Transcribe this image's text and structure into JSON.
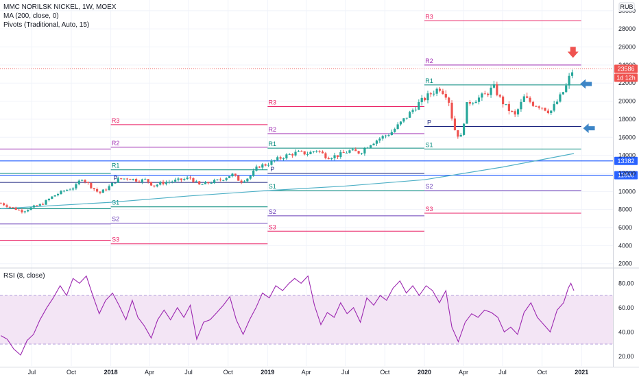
{
  "legend": {
    "title": "MMC NORILSK NICKEL, 1W, MOEX",
    "ma": "MA (200, close, 0)",
    "pivots": "Pivots (Traditional, Auto, 15)",
    "rsi": "RSI (8, close)"
  },
  "currency": "RUB",
  "colors": {
    "up": "#26a69a",
    "down": "#ef5350",
    "ma": "#4fb0c6",
    "rsi": "#9c27b0",
    "rsi_band": "#f3e5f5",
    "pivot_r": "#e91e63",
    "pivot_r2": "#9c27b0",
    "pivot_s2": "#673ab7",
    "pivot_r1": "#00897b",
    "pivot_p": "#1a237e",
    "hline": "#2962ff",
    "price_tag": "#ef5350",
    "arrow_down": "#ef5350",
    "arrow_left": "#3d85c6"
  },
  "chart_data": [
    {
      "type": "candlestick",
      "title": "MMC NORILSK NICKEL, 1W, MOEX",
      "y_axis": {
        "ticks": [
          2000,
          4000,
          6000,
          8000,
          10000,
          12000,
          14000,
          16000,
          18000,
          20000,
          22000,
          24000,
          26000,
          28000,
          30000
        ],
        "tick_labels": [
          "2000",
          "4000",
          "6000",
          "8000",
          "10000",
          "12000",
          "14000",
          "16000",
          "18000",
          "20000",
          "22000",
          "24000",
          "26000",
          "28000",
          "30000"
        ],
        "ylim": [
          1600,
          31200
        ],
        "unit": "RUB"
      },
      "x_axis": {
        "tick_labels": [
          "Jul",
          "Oct",
          "2018",
          "Apr",
          "Jul",
          "Oct",
          "2019",
          "Apr",
          "Jul",
          "Oct",
          "2020",
          "Apr",
          "Jul",
          "Oct",
          "2021"
        ],
        "tick_dates": [
          "2017-07",
          "2017-10",
          "2018-01",
          "2018-04",
          "2018-07",
          "2018-10",
          "2019-01",
          "2019-04",
          "2019-07",
          "2019-10",
          "2020-01",
          "2020-04",
          "2020-07",
          "2020-10",
          "2021-01"
        ],
        "range": [
          "2017-04-18",
          "2021-03-15"
        ]
      },
      "price_path": [
        [
          "2017-04-20",
          8700
        ],
        [
          "2017-05-15",
          8200
        ],
        [
          "2017-06-10",
          7800
        ],
        [
          "2017-07-05",
          8300
        ],
        [
          "2017-07-25",
          8600
        ],
        [
          "2017-08-20",
          9500
        ],
        [
          "2017-09-15",
          10100
        ],
        [
          "2017-10-10",
          10500
        ],
        [
          "2017-10-25",
          11500
        ],
        [
          "2017-11-15",
          10600
        ],
        [
          "2017-12-05",
          9800
        ],
        [
          "2017-12-25",
          10400
        ],
        [
          "2018-01-15",
          11300
        ],
        [
          "2018-02-10",
          11500
        ],
        [
          "2018-03-05",
          11200
        ],
        [
          "2018-03-25",
          11300
        ],
        [
          "2018-04-10",
          10600
        ],
        [
          "2018-04-25",
          10900
        ],
        [
          "2018-05-20",
          11100
        ],
        [
          "2018-06-15",
          11300
        ],
        [
          "2018-07-05",
          11500
        ],
        [
          "2018-07-25",
          10700
        ],
        [
          "2018-08-20",
          11000
        ],
        [
          "2018-09-15",
          11300
        ],
        [
          "2018-10-10",
          11900
        ],
        [
          "2018-10-30",
          11100
        ],
        [
          "2018-11-20",
          11600
        ],
        [
          "2018-12-10",
          12800
        ],
        [
          "2018-12-30",
          13000
        ],
        [
          "2019-01-20",
          13500
        ],
        [
          "2019-02-15",
          14000
        ],
        [
          "2019-03-10",
          14300
        ],
        [
          "2019-04-05",
          14200
        ],
        [
          "2019-04-25",
          14600
        ],
        [
          "2019-05-20",
          13800
        ],
        [
          "2019-06-15",
          14000
        ],
        [
          "2019-07-10",
          14500
        ],
        [
          "2019-08-05",
          14300
        ],
        [
          "2019-08-25",
          15200
        ],
        [
          "2019-09-20",
          15900
        ],
        [
          "2019-10-15",
          16500
        ],
        [
          "2019-11-05",
          17500
        ],
        [
          "2019-11-25",
          18500
        ],
        [
          "2019-12-20",
          19800
        ],
        [
          "2020-01-15",
          20800
        ],
        [
          "2020-02-05",
          21500
        ],
        [
          "2020-02-25",
          20500
        ],
        [
          "2020-03-10",
          17000
        ],
        [
          "2020-03-25",
          15800
        ],
        [
          "2020-04-10",
          19800
        ],
        [
          "2020-05-05",
          20300
        ],
        [
          "2020-05-25",
          20800
        ],
        [
          "2020-06-10",
          21600
        ],
        [
          "2020-06-25",
          20300
        ],
        [
          "2020-07-10",
          19300
        ],
        [
          "2020-07-30",
          18400
        ],
        [
          "2020-08-20",
          20400
        ],
        [
          "2020-09-10",
          19700
        ],
        [
          "2020-09-30",
          19400
        ],
        [
          "2020-10-20",
          18800
        ],
        [
          "2020-11-10",
          20300
        ],
        [
          "2020-11-25",
          21500
        ],
        [
          "2020-12-07",
          23100
        ],
        [
          "2020-12-14",
          23586
        ]
      ],
      "ma200_path": [
        [
          "2017-04-20",
          8100
        ],
        [
          "2018-01-01",
          8800
        ],
        [
          "2018-07-01",
          9500
        ],
        [
          "2019-01-01",
          10100
        ],
        [
          "2019-07-01",
          10600
        ],
        [
          "2020-01-01",
          11300
        ],
        [
          "2020-07-01",
          12700
        ],
        [
          "2020-12-14",
          14200
        ]
      ],
      "last_price": 23586,
      "last_price_label": "23586",
      "countdown_label": "1d 12h",
      "horizontal_lines": [
        {
          "value": 13382,
          "label": "13382"
        },
        {
          "value": 11800,
          "label": "11800"
        }
      ],
      "pivot_periods": [
        {
          "range": [
            "2017-04-18",
            "2018-01-01"
          ],
          "levels": [
            {
              "name": "R1",
              "value": 12000,
              "show_label": false
            },
            {
              "name": "P",
              "value": 11000,
              "show_label": false
            },
            {
              "name": "S1",
              "value": 8100,
              "show_label": false
            },
            {
              "name": "S2",
              "value": 6400,
              "show_label": false
            },
            {
              "name": "S3",
              "value": 4600,
              "show_label": false
            },
            {
              "name": "R2",
              "value": 14700,
              "show_label": false
            }
          ]
        },
        {
          "range": [
            "2018-01-01",
            "2019-01-01"
          ],
          "levels": [
            {
              "name": "R3",
              "value": 17400,
              "show_label": true
            },
            {
              "name": "R2",
              "value": 14900,
              "show_label": true
            },
            {
              "name": "R1",
              "value": 12400,
              "show_label": true
            },
            {
              "name": "P",
              "value": 11000,
              "show_label": true
            },
            {
              "name": "S1",
              "value": 8300,
              "show_label": true
            },
            {
              "name": "S2",
              "value": 6500,
              "show_label": true
            },
            {
              "name": "S3",
              "value": 4200,
              "show_label": true
            }
          ]
        },
        {
          "range": [
            "2019-01-01",
            "2020-01-01"
          ],
          "levels": [
            {
              "name": "R3",
              "value": 19400,
              "show_label": true
            },
            {
              "name": "R2",
              "value": 16400,
              "show_label": true
            },
            {
              "name": "R1",
              "value": 14800,
              "show_label": true
            },
            {
              "name": "P",
              "value": 12000,
              "show_label": true
            },
            {
              "name": "S1",
              "value": 10100,
              "show_label": true
            },
            {
              "name": "S2",
              "value": 7300,
              "show_label": true
            },
            {
              "name": "S3",
              "value": 5600,
              "show_label": true
            }
          ]
        },
        {
          "range": [
            "2020-01-01",
            "2020-12-31"
          ],
          "levels": [
            {
              "name": "R3",
              "value": 28900,
              "show_label": true
            },
            {
              "name": "R2",
              "value": 24000,
              "show_label": true
            },
            {
              "name": "R1",
              "value": 21800,
              "show_label": true
            },
            {
              "name": "P",
              "value": 17200,
              "show_label": true
            },
            {
              "name": "S1",
              "value": 14700,
              "show_label": true
            },
            {
              "name": "S2",
              "value": 10100,
              "show_label": true
            },
            {
              "name": "S3",
              "value": 7600,
              "show_label": true
            }
          ]
        }
      ],
      "annotations": [
        {
          "type": "arrow-down",
          "date": "2020-12-12",
          "value": 25400
        },
        {
          "type": "arrow-left",
          "date": "2021-01-12",
          "value": 21900
        },
        {
          "type": "arrow-left",
          "date": "2021-01-19",
          "value": 17000
        }
      ]
    },
    {
      "type": "line",
      "title": "RSI (8, close)",
      "y_axis": {
        "ticks": [
          20,
          40,
          60,
          80
        ],
        "tick_labels": [
          "20.00",
          "40.00",
          "60.00",
          "80.00"
        ],
        "ylim": [
          12,
          92
        ],
        "band": [
          30,
          70
        ]
      },
      "rsi_path": [
        [
          "2017-04-20",
          37
        ],
        [
          "2017-05-05",
          34
        ],
        [
          "2017-05-20",
          26
        ],
        [
          "2017-06-05",
          21
        ],
        [
          "2017-06-20",
          33
        ],
        [
          "2017-07-05",
          38
        ],
        [
          "2017-07-20",
          50
        ],
        [
          "2017-08-05",
          60
        ],
        [
          "2017-08-20",
          68
        ],
        [
          "2017-09-05",
          78
        ],
        [
          "2017-09-20",
          70
        ],
        [
          "2017-10-05",
          84
        ],
        [
          "2017-10-20",
          80
        ],
        [
          "2017-11-05",
          86
        ],
        [
          "2017-11-20",
          70
        ],
        [
          "2017-12-05",
          55
        ],
        [
          "2017-12-20",
          66
        ],
        [
          "2018-01-05",
          72
        ],
        [
          "2018-01-20",
          62
        ],
        [
          "2018-02-05",
          50
        ],
        [
          "2018-02-20",
          66
        ],
        [
          "2018-03-05",
          52
        ],
        [
          "2018-03-20",
          45
        ],
        [
          "2018-04-05",
          35
        ],
        [
          "2018-04-20",
          50
        ],
        [
          "2018-05-05",
          58
        ],
        [
          "2018-05-20",
          50
        ],
        [
          "2018-06-05",
          60
        ],
        [
          "2018-06-20",
          52
        ],
        [
          "2018-07-05",
          62
        ],
        [
          "2018-07-20",
          34
        ],
        [
          "2018-08-05",
          48
        ],
        [
          "2018-08-20",
          50
        ],
        [
          "2018-09-05",
          56
        ],
        [
          "2018-09-20",
          62
        ],
        [
          "2018-10-05",
          69
        ],
        [
          "2018-10-20",
          50
        ],
        [
          "2018-11-05",
          38
        ],
        [
          "2018-11-20",
          50
        ],
        [
          "2018-12-05",
          60
        ],
        [
          "2018-12-20",
          72
        ],
        [
          "2019-01-05",
          68
        ],
        [
          "2019-01-20",
          78
        ],
        [
          "2019-02-05",
          74
        ],
        [
          "2019-02-20",
          80
        ],
        [
          "2019-03-05",
          84
        ],
        [
          "2019-03-20",
          80
        ],
        [
          "2019-04-05",
          86
        ],
        [
          "2019-04-20",
          62
        ],
        [
          "2019-05-05",
          46
        ],
        [
          "2019-05-20",
          56
        ],
        [
          "2019-06-05",
          52
        ],
        [
          "2019-06-20",
          64
        ],
        [
          "2019-07-05",
          55
        ],
        [
          "2019-07-20",
          60
        ],
        [
          "2019-08-05",
          48
        ],
        [
          "2019-08-20",
          68
        ],
        [
          "2019-09-05",
          62
        ],
        [
          "2019-09-20",
          70
        ],
        [
          "2019-10-05",
          66
        ],
        [
          "2019-10-20",
          76
        ],
        [
          "2019-11-05",
          82
        ],
        [
          "2019-11-20",
          72
        ],
        [
          "2019-12-05",
          78
        ],
        [
          "2019-12-20",
          70
        ],
        [
          "2020-01-05",
          78
        ],
        [
          "2020-01-20",
          74
        ],
        [
          "2020-02-05",
          64
        ],
        [
          "2020-02-20",
          74
        ],
        [
          "2020-03-05",
          44
        ],
        [
          "2020-03-20",
          32
        ],
        [
          "2020-04-05",
          48
        ],
        [
          "2020-04-20",
          55
        ],
        [
          "2020-05-05",
          52
        ],
        [
          "2020-05-20",
          58
        ],
        [
          "2020-06-05",
          56
        ],
        [
          "2020-06-20",
          52
        ],
        [
          "2020-07-05",
          40
        ],
        [
          "2020-07-20",
          44
        ],
        [
          "2020-08-05",
          38
        ],
        [
          "2020-08-20",
          56
        ],
        [
          "2020-09-05",
          64
        ],
        [
          "2020-09-20",
          52
        ],
        [
          "2020-10-05",
          46
        ],
        [
          "2020-10-20",
          40
        ],
        [
          "2020-11-05",
          58
        ],
        [
          "2020-11-20",
          64
        ],
        [
          "2020-12-01",
          76
        ],
        [
          "2020-12-07",
          80
        ],
        [
          "2020-12-14",
          74
        ]
      ]
    }
  ]
}
